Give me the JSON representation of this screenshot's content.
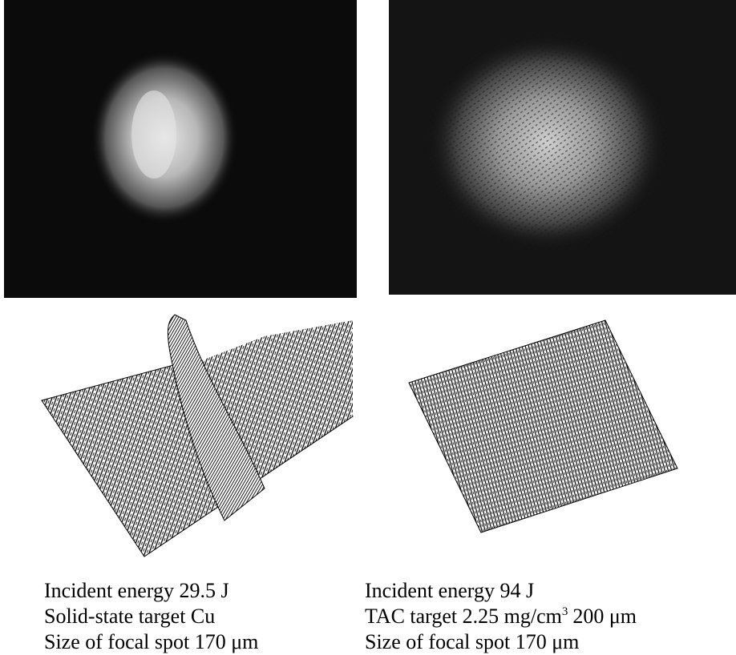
{
  "panels": [
    {
      "caption": [
        "Incident energy 29.5 J",
        "Solid-state target Cu",
        "Size of focal spot 170 μm"
      ]
    },
    {
      "caption": [
        "Incident energy 94 J",
        {
          "parts": [
            "TAC target 2.25 mg/cm",
            "3",
            "200 μm"
          ]
        },
        "Size of focal spot 170 μm"
      ]
    }
  ]
}
